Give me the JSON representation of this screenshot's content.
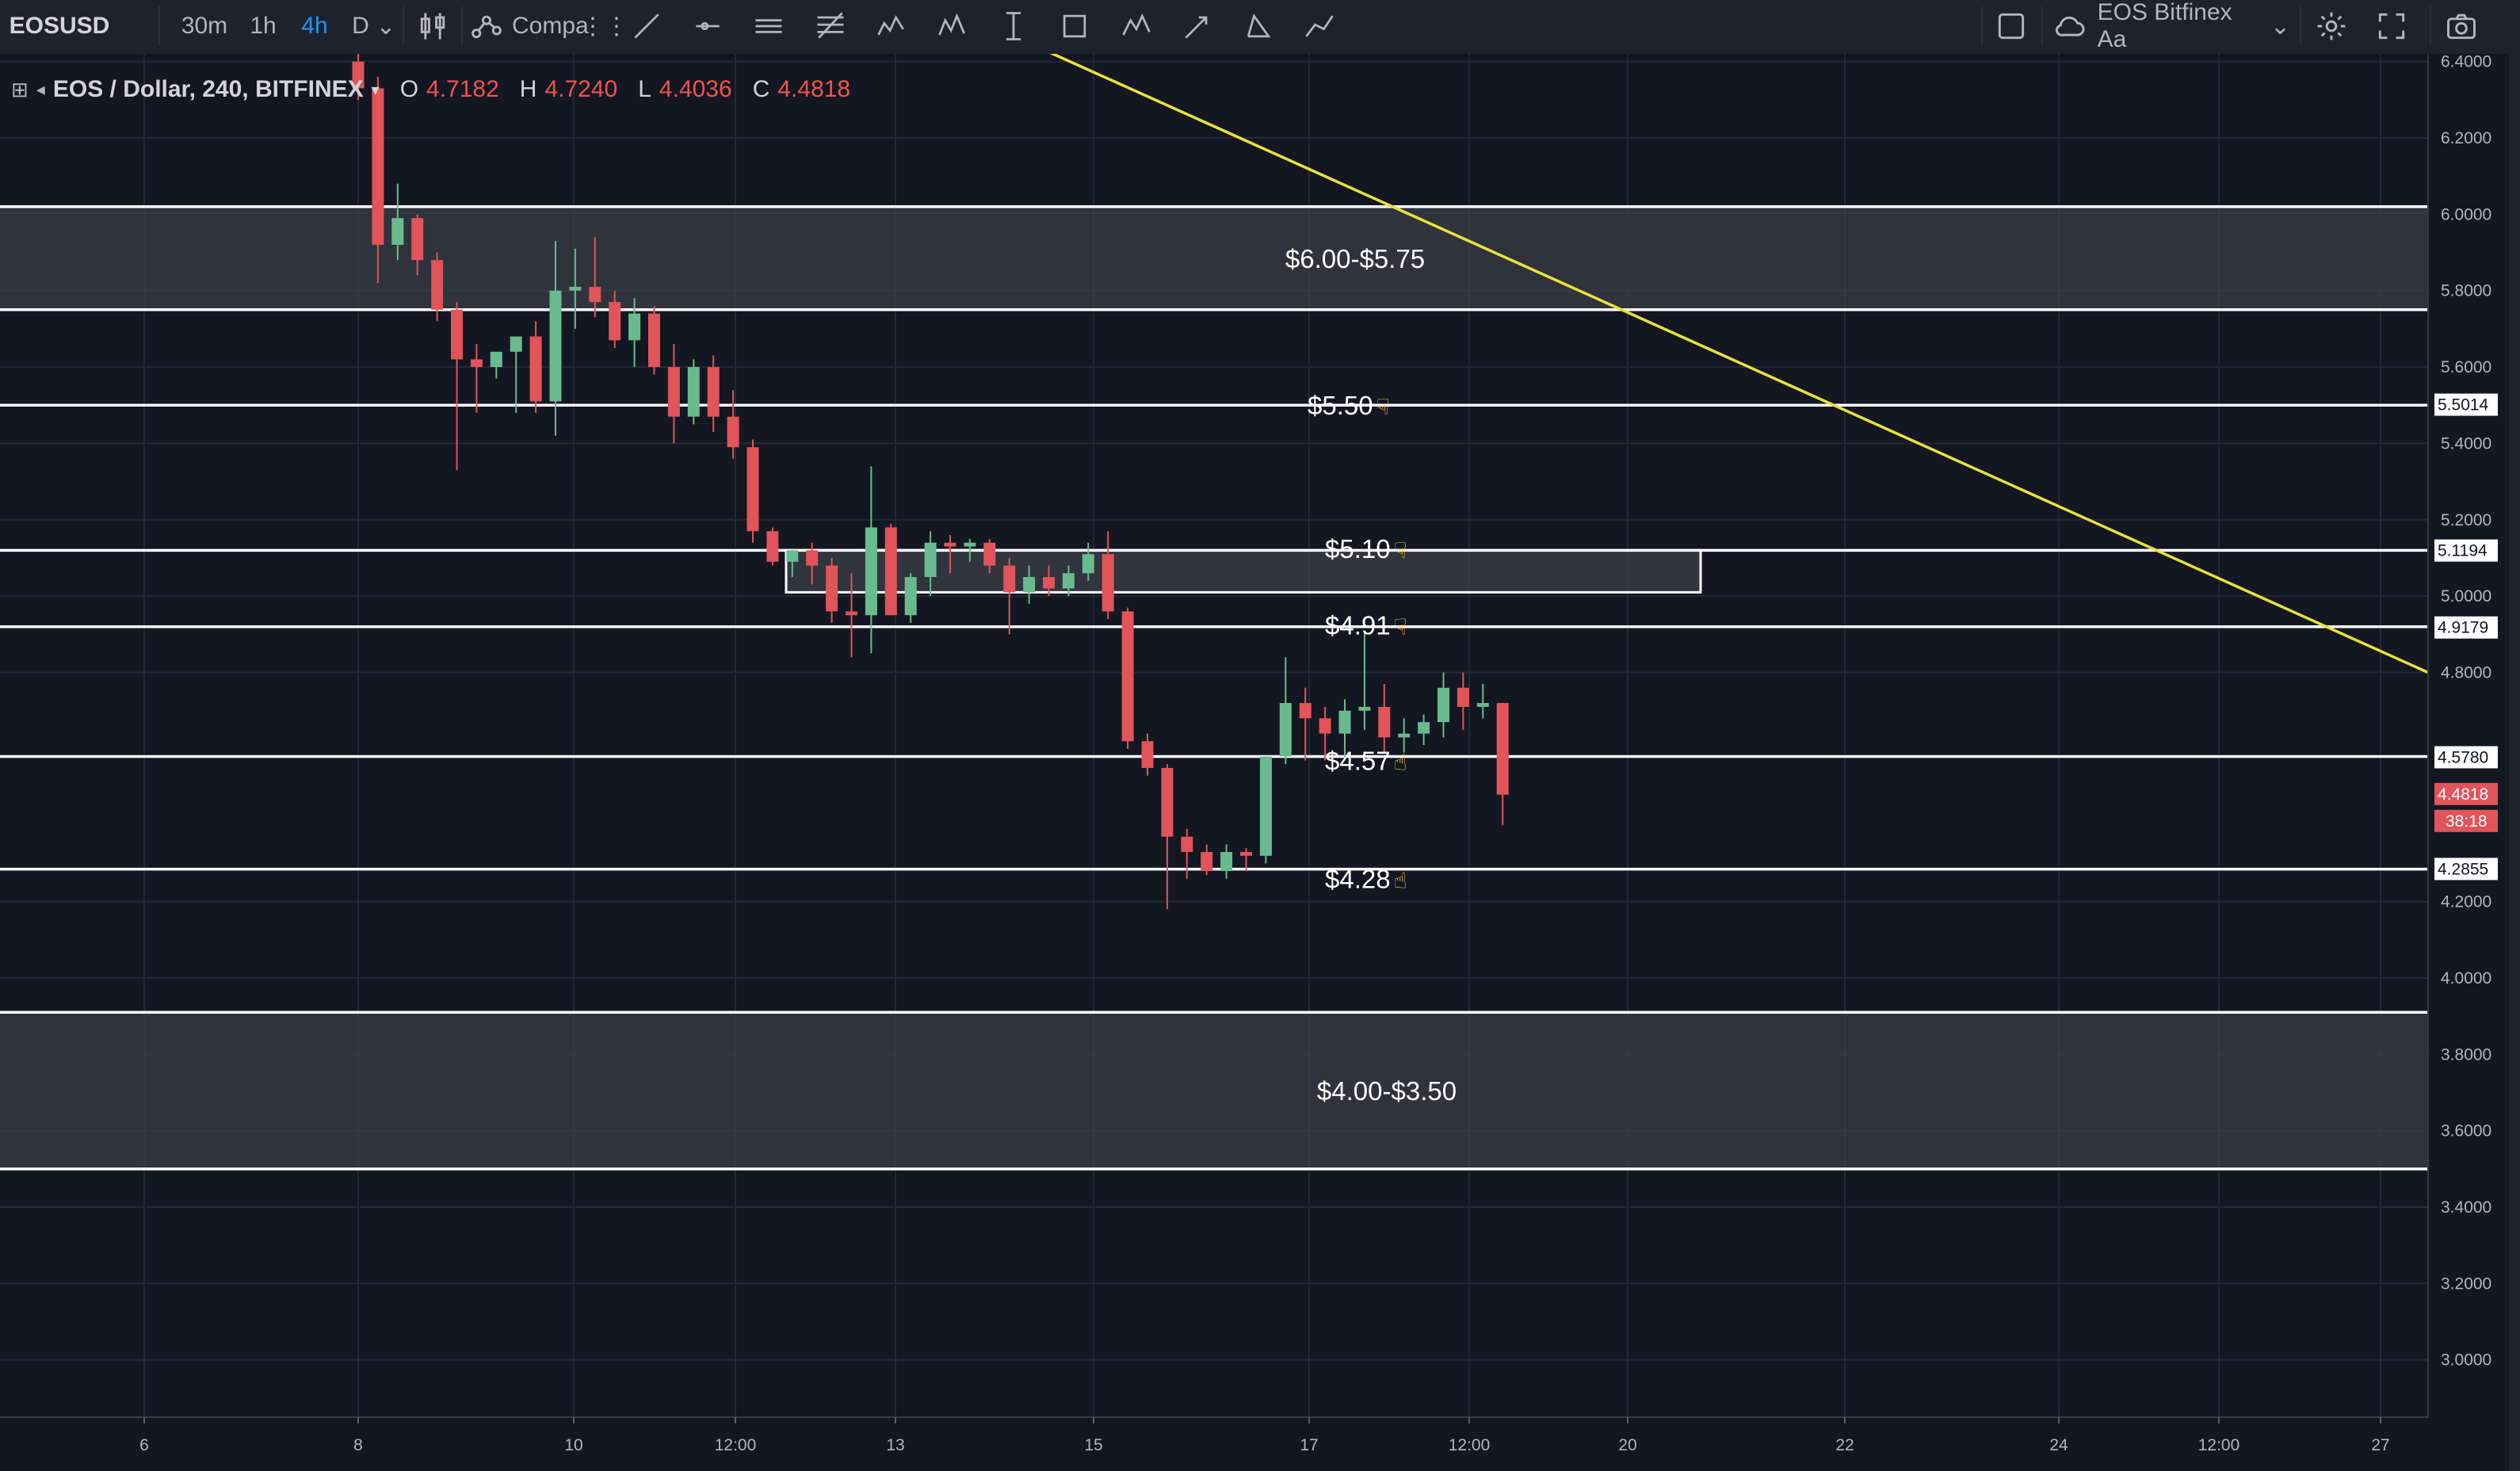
{
  "toolbar": {
    "symbol": "EOSUSD",
    "intervals": [
      "30m",
      "1h",
      "4h",
      "D"
    ],
    "active_interval": "4h",
    "compare_label": "Compa",
    "chart_title": "EOS Bitfinex Aa"
  },
  "legend": {
    "title": "EOS / Dollar, 240, BITFINEX",
    "o_label": "O",
    "o_value": "4.7182",
    "h_label": "H",
    "h_value": "4.7240",
    "l_label": "L",
    "l_value": "4.4036",
    "c_label": "C",
    "c_value": "4.4818"
  },
  "chart_data": {
    "type": "candlestick",
    "symbol": "EOSUSD",
    "ylim": [
      2.85,
      6.42
    ],
    "y_ticks": [
      {
        "value": 6.4,
        "label": "6.4000"
      },
      {
        "value": 6.2,
        "label": "6.2000"
      },
      {
        "value": 6.0,
        "label": "6.0000"
      },
      {
        "value": 5.8,
        "label": "5.8000"
      },
      {
        "value": 5.6,
        "label": "5.6000"
      },
      {
        "value": 5.4,
        "label": "5.4000"
      },
      {
        "value": 5.2,
        "label": "5.2000"
      },
      {
        "value": 5.0,
        "label": "5.0000"
      },
      {
        "value": 4.8,
        "label": "4.8000"
      },
      {
        "value": 4.2,
        "label": "4.2000"
      },
      {
        "value": 4.0,
        "label": "4.0000"
      },
      {
        "value": 3.8,
        "label": "3.8000"
      },
      {
        "value": 3.6,
        "label": "3.6000"
      },
      {
        "value": 3.4,
        "label": "3.4000"
      },
      {
        "value": 3.2,
        "label": "3.2000"
      },
      {
        "value": 3.0,
        "label": "3.0000"
      }
    ],
    "x_ticks": [
      "6",
      "8",
      "10",
      "12:00",
      "13",
      "15",
      "17",
      "12:00",
      "20",
      "22",
      "24",
      "12:00",
      "27"
    ],
    "candles": [
      {
        "o": 6.4,
        "h": 6.43,
        "l": 6.3,
        "c": 6.33
      },
      {
        "o": 6.33,
        "h": 6.36,
        "l": 5.82,
        "c": 5.92
      },
      {
        "o": 5.92,
        "h": 6.08,
        "l": 5.88,
        "c": 5.99
      },
      {
        "o": 5.99,
        "h": 6.0,
        "l": 5.84,
        "c": 5.88
      },
      {
        "o": 5.88,
        "h": 5.9,
        "l": 5.72,
        "c": 5.75
      },
      {
        "o": 5.75,
        "h": 5.77,
        "l": 5.33,
        "c": 5.62
      },
      {
        "o": 5.62,
        "h": 5.66,
        "l": 5.48,
        "c": 5.6
      },
      {
        "o": 5.6,
        "h": 5.63,
        "l": 5.57,
        "c": 5.64
      },
      {
        "o": 5.64,
        "h": 5.66,
        "l": 5.48,
        "c": 5.68
      },
      {
        "o": 5.68,
        "h": 5.72,
        "l": 5.48,
        "c": 5.51
      },
      {
        "o": 5.51,
        "h": 5.93,
        "l": 5.42,
        "c": 5.8
      },
      {
        "o": 5.8,
        "h": 5.91,
        "l": 5.7,
        "c": 5.81
      },
      {
        "o": 5.81,
        "h": 5.94,
        "l": 5.73,
        "c": 5.77
      },
      {
        "o": 5.77,
        "h": 5.8,
        "l": 5.65,
        "c": 5.67
      },
      {
        "o": 5.67,
        "h": 5.78,
        "l": 5.6,
        "c": 5.74
      },
      {
        "o": 5.74,
        "h": 5.76,
        "l": 5.58,
        "c": 5.6
      },
      {
        "o": 5.6,
        "h": 5.66,
        "l": 5.4,
        "c": 5.47
      },
      {
        "o": 5.47,
        "h": 5.62,
        "l": 5.45,
        "c": 5.6
      },
      {
        "o": 5.6,
        "h": 5.63,
        "l": 5.43,
        "c": 5.47
      },
      {
        "o": 5.47,
        "h": 5.54,
        "l": 5.36,
        "c": 5.39
      },
      {
        "o": 5.39,
        "h": 5.41,
        "l": 5.14,
        "c": 5.17
      },
      {
        "o": 5.17,
        "h": 5.18,
        "l": 5.08,
        "c": 5.09
      },
      {
        "o": 5.09,
        "h": 5.12,
        "l": 5.05,
        "c": 5.12
      },
      {
        "o": 5.12,
        "h": 5.14,
        "l": 5.03,
        "c": 5.08
      },
      {
        "o": 5.08,
        "h": 5.1,
        "l": 4.93,
        "c": 4.96
      },
      {
        "o": 4.96,
        "h": 5.06,
        "l": 4.84,
        "c": 4.95
      },
      {
        "o": 4.95,
        "h": 5.34,
        "l": 4.85,
        "c": 5.18
      },
      {
        "o": 5.18,
        "h": 5.19,
        "l": 4.96,
        "c": 4.95
      },
      {
        "o": 4.95,
        "h": 5.06,
        "l": 4.93,
        "c": 5.05
      },
      {
        "o": 5.05,
        "h": 5.17,
        "l": 5.0,
        "c": 5.14
      },
      {
        "o": 5.14,
        "h": 5.16,
        "l": 5.06,
        "c": 5.13
      },
      {
        "o": 5.13,
        "h": 5.15,
        "l": 5.09,
        "c": 5.14
      },
      {
        "o": 5.14,
        "h": 5.15,
        "l": 5.06,
        "c": 5.08
      },
      {
        "o": 5.08,
        "h": 5.1,
        "l": 4.9,
        "c": 5.01
      },
      {
        "o": 5.01,
        "h": 5.08,
        "l": 4.98,
        "c": 5.05
      },
      {
        "o": 5.05,
        "h": 5.08,
        "l": 5.0,
        "c": 5.02
      },
      {
        "o": 5.02,
        "h": 5.08,
        "l": 5.0,
        "c": 5.06
      },
      {
        "o": 5.06,
        "h": 5.14,
        "l": 5.04,
        "c": 5.11
      },
      {
        "o": 5.11,
        "h": 5.17,
        "l": 4.94,
        "c": 4.96
      },
      {
        "o": 4.96,
        "h": 4.97,
        "l": 4.6,
        "c": 4.62
      },
      {
        "o": 4.62,
        "h": 4.64,
        "l": 4.53,
        "c": 4.55
      },
      {
        "o": 4.55,
        "h": 4.56,
        "l": 4.18,
        "c": 4.37
      },
      {
        "o": 4.37,
        "h": 4.39,
        "l": 4.26,
        "c": 4.33
      },
      {
        "o": 4.33,
        "h": 4.35,
        "l": 4.27,
        "c": 4.28
      },
      {
        "o": 4.28,
        "h": 4.35,
        "l": 4.26,
        "c": 4.33
      },
      {
        "o": 4.33,
        "h": 4.34,
        "l": 4.28,
        "c": 4.32
      },
      {
        "o": 4.32,
        "h": 4.58,
        "l": 4.3,
        "c": 4.58
      },
      {
        "o": 4.58,
        "h": 4.84,
        "l": 4.56,
        "c": 4.72
      },
      {
        "o": 4.72,
        "h": 4.76,
        "l": 4.57,
        "c": 4.68
      },
      {
        "o": 4.68,
        "h": 4.71,
        "l": 4.57,
        "c": 4.64
      },
      {
        "o": 4.64,
        "h": 4.73,
        "l": 4.57,
        "c": 4.7
      },
      {
        "o": 4.7,
        "h": 4.91,
        "l": 4.65,
        "c": 4.71
      },
      {
        "o": 4.71,
        "h": 4.77,
        "l": 4.59,
        "c": 4.63
      },
      {
        "o": 4.63,
        "h": 4.68,
        "l": 4.59,
        "c": 4.64
      },
      {
        "o": 4.64,
        "h": 4.69,
        "l": 4.61,
        "c": 4.67
      },
      {
        "o": 4.67,
        "h": 4.8,
        "l": 4.63,
        "c": 4.76
      },
      {
        "o": 4.76,
        "h": 4.8,
        "l": 4.65,
        "c": 4.71
      },
      {
        "o": 4.71,
        "h": 4.77,
        "l": 4.68,
        "c": 4.72
      },
      {
        "o": 4.72,
        "h": 4.72,
        "l": 4.4,
        "c": 4.48
      }
    ],
    "horizontal_levels": [
      6.02,
      5.75,
      5.5,
      5.12,
      4.92,
      4.58,
      4.285,
      3.91,
      3.5
    ],
    "zones": [
      {
        "from": 5.75,
        "to": 6.02,
        "label": "$6.00-$5.75"
      },
      {
        "from": 3.5,
        "to": 3.91,
        "label": "$4.00-$3.50"
      }
    ],
    "box": {
      "from": 5.01,
      "to": 5.12
    },
    "level_labels": [
      {
        "price": 5.5,
        "label": "$5.50",
        "pointer": "down"
      },
      {
        "price": 5.1,
        "label": "$5.10",
        "pointer": "down"
      },
      {
        "price": 4.91,
        "label": "$4.91",
        "pointer": "down"
      },
      {
        "price": 4.57,
        "label": "$4.57",
        "pointer": "up"
      },
      {
        "price": 4.28,
        "label": "$4.28",
        "pointer": "up"
      }
    ],
    "trendline": {
      "from": 6.43,
      "to": 4.8
    },
    "price_tags": [
      {
        "value": 5.5014,
        "label": "5.5014",
        "kind": "level"
      },
      {
        "value": 5.1194,
        "label": "5.1194",
        "kind": "level"
      },
      {
        "value": 4.9179,
        "label": "4.9179",
        "kind": "level"
      },
      {
        "value": 4.578,
        "label": "4.5780",
        "kind": "level"
      },
      {
        "value": 4.4818,
        "label": "4.4818",
        "kind": "last"
      },
      {
        "value": 4.2855,
        "label": "4.2855",
        "kind": "level"
      }
    ],
    "countdown": "38:18",
    "colors": {
      "up": "#6aba8f",
      "down": "#e0545a",
      "background": "#131722",
      "grid": "#242834",
      "level": "#ffffff",
      "trend": "#e8e23a",
      "zone": "#3a3d45",
      "last_tag": "#e0545a"
    }
  }
}
